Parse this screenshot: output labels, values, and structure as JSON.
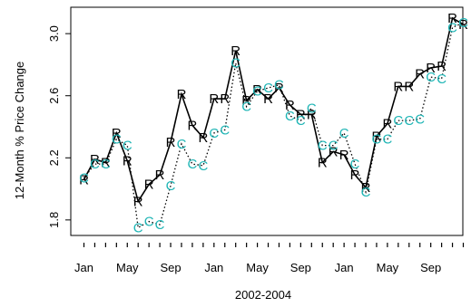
{
  "chart_data": {
    "type": "line",
    "xlabel": "2002-2004",
    "ylabel": "12-Month % Price Change",
    "ylim": [
      1.7,
      3.17
    ],
    "yticks": [
      1.8,
      2.2,
      2.6,
      3.0
    ],
    "ytick_labels": [
      "1.8",
      "2.2",
      "2.6",
      "3.0"
    ],
    "xtick_labels": [
      "Jan",
      "May",
      "Sep",
      "Jan",
      "May",
      "Sep",
      "Jan",
      "May",
      "Sep"
    ],
    "xtick_months": [
      1,
      5,
      9,
      13,
      17,
      21,
      25,
      29,
      33
    ],
    "months": [
      1,
      2,
      3,
      4,
      5,
      6,
      7,
      8,
      9,
      10,
      11,
      12,
      13,
      14,
      15,
      16,
      17,
      18,
      19,
      20,
      21,
      22,
      23,
      24,
      25,
      26,
      27,
      28,
      29,
      30,
      31,
      32,
      33,
      34,
      35,
      36
    ],
    "grid": false,
    "legend": "none",
    "series": [
      {
        "symbol": "R",
        "color": "#000000",
        "line": "solid",
        "values": [
          2.06,
          2.19,
          2.17,
          2.36,
          2.18,
          1.92,
          2.03,
          2.09,
          2.3,
          2.61,
          2.41,
          2.33,
          2.58,
          2.58,
          2.89,
          2.57,
          2.64,
          2.58,
          2.65,
          2.54,
          2.48,
          2.48,
          2.17,
          2.24,
          2.22,
          2.09,
          2.01,
          2.34,
          2.42,
          2.66,
          2.66,
          2.74,
          2.78,
          2.79,
          3.1,
          3.06
        ]
      },
      {
        "symbol": "C",
        "color": "#1fb5b5",
        "line": "dotted",
        "values": [
          2.07,
          2.16,
          2.16,
          2.32,
          2.28,
          1.75,
          1.79,
          1.77,
          2.02,
          2.29,
          2.16,
          2.15,
          2.36,
          2.38,
          2.81,
          2.53,
          2.63,
          2.65,
          2.67,
          2.47,
          2.44,
          2.52,
          2.28,
          2.28,
          2.36,
          2.16,
          1.98,
          2.32,
          2.32,
          2.44,
          2.44,
          2.45,
          2.72,
          2.71,
          3.04,
          3.07
        ]
      }
    ]
  }
}
